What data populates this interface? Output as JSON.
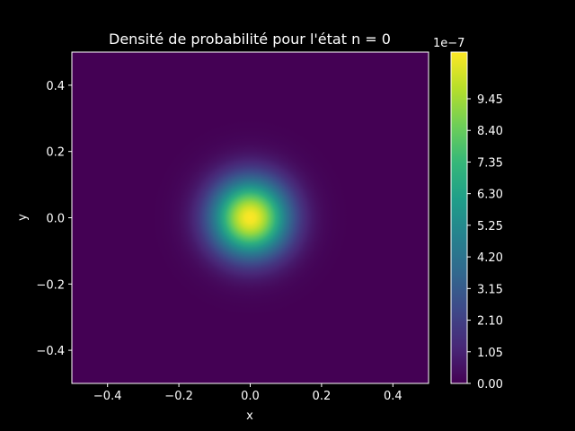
{
  "chart_data": {
    "type": "heatmap",
    "title": "Densité de probabilité pour l'état n = 0",
    "xlabel": "x",
    "ylabel": "y",
    "xlim": [
      -0.5,
      0.5
    ],
    "ylim": [
      -0.5,
      0.5
    ],
    "x_ticks": [
      -0.4,
      -0.2,
      0.0,
      0.2,
      0.4
    ],
    "x_tick_labels": [
      "−0.4",
      "−0.2",
      "0.0",
      "0.2",
      "0.4"
    ],
    "y_ticks": [
      -0.4,
      -0.2,
      0.0,
      0.2,
      0.4
    ],
    "y_tick_labels": [
      "−0.4",
      "−0.2",
      "0.0",
      "0.2",
      "0.4"
    ],
    "colorbar": {
      "colormap": "viridis",
      "min": 0.0,
      "max": 1.1e-06,
      "scale_label": "1e−7",
      "ticks": [
        0.0,
        1.05,
        2.1,
        3.15,
        4.2,
        5.25,
        6.3,
        7.35,
        8.4,
        9.45
      ],
      "tick_labels": [
        "0.00",
        "1.05",
        "2.10",
        "3.15",
        "4.20",
        "5.25",
        "6.30",
        "7.35",
        "8.40",
        "9.45"
      ]
    },
    "field": {
      "function": "gaussian_2d",
      "peak": 1.1e-06,
      "center": [
        0.0,
        0.0
      ],
      "sigma": 0.075
    },
    "grid": false
  },
  "colors": {
    "background": "#000000",
    "foreground": "#ffffff",
    "viridis": [
      "#440154",
      "#482878",
      "#3e4989",
      "#31688e",
      "#26828e",
      "#1f9e89",
      "#35b779",
      "#6ece58",
      "#b5de2b",
      "#fde725"
    ]
  }
}
